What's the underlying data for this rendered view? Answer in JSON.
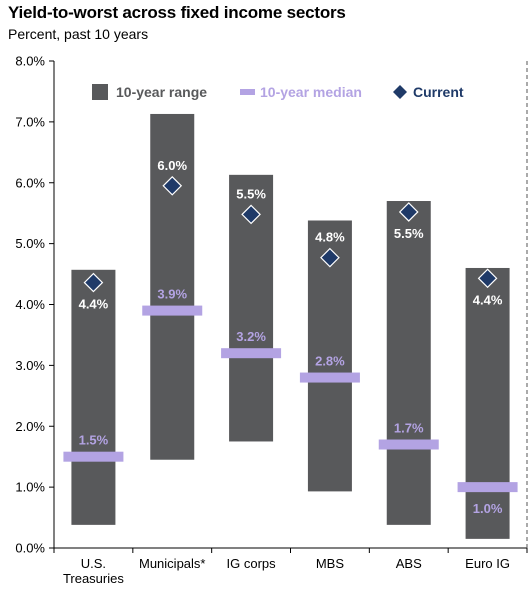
{
  "chart_data": {
    "type": "bar",
    "title": "Yield-to-worst across fixed income sectors",
    "subtitle": "Percent, past 10 years",
    "categories": [
      [
        "U.S.",
        "Treasuries"
      ],
      [
        "Municipals*"
      ],
      [
        "IG corps"
      ],
      [
        "MBS"
      ],
      [
        "ABS"
      ],
      [
        "Euro IG"
      ]
    ],
    "y_ticks": [
      "0.0%",
      "1.0%",
      "2.0%",
      "3.0%",
      "4.0%",
      "5.0%",
      "6.0%",
      "7.0%",
      "8.0%"
    ],
    "ylim": [
      0,
      8
    ],
    "series": [
      {
        "name": "10-year range",
        "kind": "range",
        "low": [
          0.38,
          1.45,
          1.75,
          0.93,
          0.38,
          0.15
        ],
        "high": [
          4.57,
          7.13,
          6.13,
          5.38,
          5.7,
          4.6
        ]
      },
      {
        "name": "10-year median",
        "kind": "median",
        "values": [
          1.5,
          3.9,
          3.2,
          2.8,
          1.7,
          1.0
        ],
        "labels": [
          "1.5%",
          "3.9%",
          "3.2%",
          "2.8%",
          "1.7%",
          "1.0%"
        ]
      },
      {
        "name": "Current",
        "kind": "current",
        "values": [
          4.36,
          5.95,
          5.48,
          4.77,
          5.52,
          4.43
        ],
        "labels": [
          "4.4%",
          "6.0%",
          "5.5%",
          "4.8%",
          "5.5%",
          "4.4%"
        ]
      }
    ],
    "legend_position": "top",
    "colors": {
      "range": "#58595b",
      "median": "#b3a3e3",
      "current": "#1f3a68",
      "range_label": "#ffffff"
    }
  }
}
